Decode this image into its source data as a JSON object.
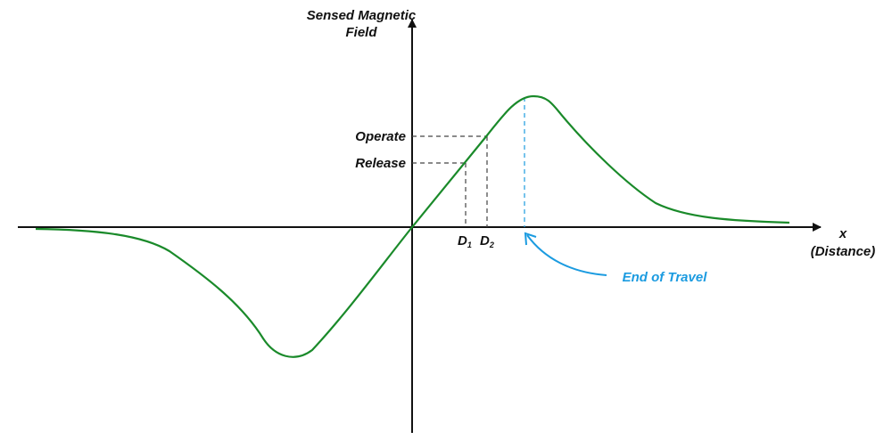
{
  "y_axis_label": [
    "Sensed Magnetic",
    "Field"
  ],
  "x_axis_label": {
    "symbol": "x",
    "name": "(Distance)"
  },
  "levels": {
    "operate": "Operate",
    "release": "Release"
  },
  "distances": {
    "d1": "D",
    "d1_sub": "1",
    "d2": "D",
    "d2_sub": "2"
  },
  "annotation": "End of Travel",
  "colors": {
    "curve": "#1a8a2a",
    "annotation": "#1b9be0",
    "axis": "#111111",
    "guide": "#444444"
  }
}
